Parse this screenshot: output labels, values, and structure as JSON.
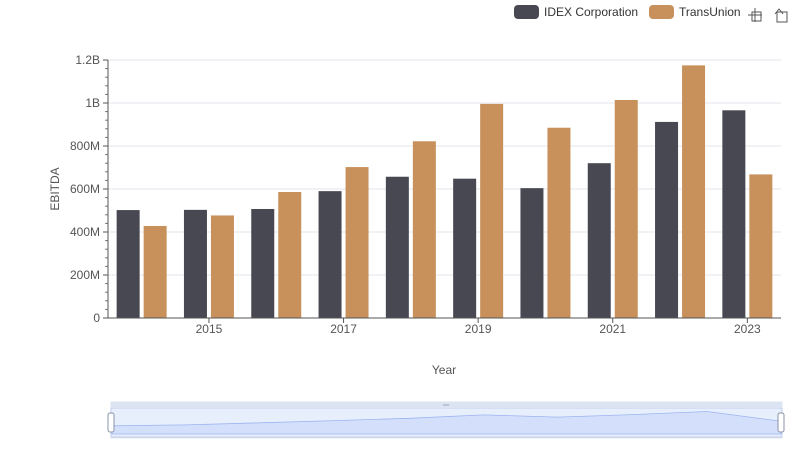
{
  "chart_data": {
    "type": "bar",
    "title": "",
    "xlabel": "Year",
    "ylabel": "EBITDA",
    "x": [
      2014,
      2015,
      2016,
      2017,
      2018,
      2019,
      2020,
      2021,
      2022,
      2023
    ],
    "x_tick_labels": [
      "2015",
      "2017",
      "2019",
      "2021",
      "2023"
    ],
    "x_tick_values": [
      2015,
      2017,
      2019,
      2021,
      2023
    ],
    "ylim": [
      0,
      1200000000
    ],
    "y_tick_values": [
      0,
      200000000,
      400000000,
      600000000,
      800000000,
      1000000000,
      1200000000
    ],
    "y_tick_labels": [
      "0",
      "200M",
      "400M",
      "600M",
      "800M",
      "1B",
      "1.2B"
    ],
    "grid": true,
    "legend_position": "top-right",
    "series": [
      {
        "name": "IDEX Corporation",
        "color": "#484853",
        "values": [
          502000000,
          503000000,
          507000000,
          590000000,
          657000000,
          648000000,
          604000000,
          720000000,
          912000000,
          966000000
        ]
      },
      {
        "name": "TransUnion",
        "color": "#c8915b",
        "values": [
          428000000,
          477000000,
          586000000,
          702000000,
          822000000,
          996000000,
          885000000,
          1014000000,
          1175000000,
          668000000
        ]
      }
    ]
  },
  "toolbar": {
    "zoom_icon": "crosshair-zoom-icon",
    "reset_icon": "restore-icon"
  },
  "colors": {
    "grid": "#e6e6ee",
    "slider_fill": "#d4e0fb",
    "slider_border": "#c3cee9",
    "slider_line": "#9db4f0"
  }
}
